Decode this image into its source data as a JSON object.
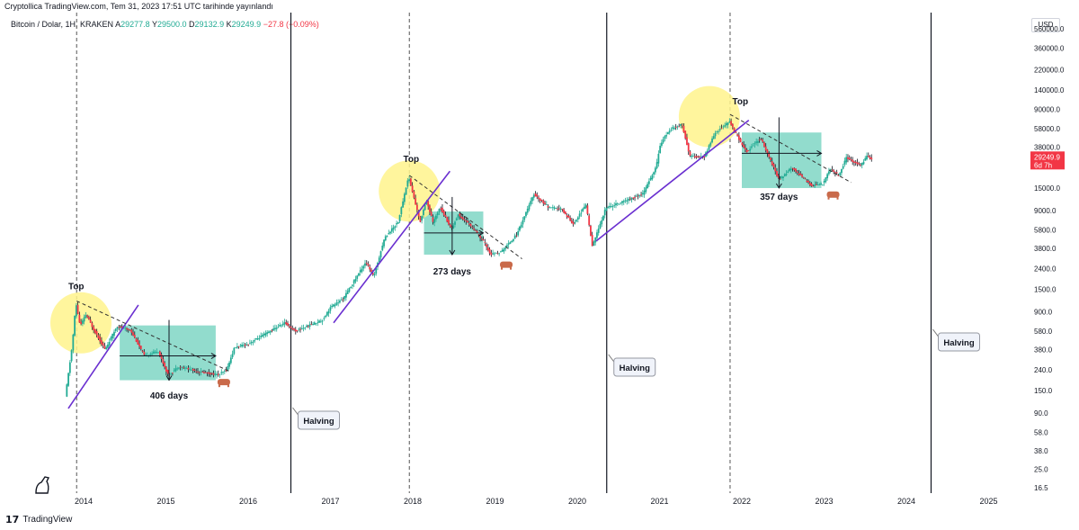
{
  "header": {
    "published": "Cryptollica TradingView.com, Tem 31, 2023 17:51 UTC tarihinde yayınlandı"
  },
  "symbol": {
    "name": "Bitcoin / Dolar, 1H, KRAKEN",
    "open_label": "A",
    "open": "29277.8",
    "high_label": "Y",
    "high": "29500.0",
    "low_label": "D",
    "low": "29132.9",
    "close_label": "K",
    "close": "29249.9",
    "change": "−27.8 (−0.09%)"
  },
  "price_scale": {
    "currency": "USD",
    "ticks": [
      "560000.0",
      "360000.0",
      "220000.0",
      "140000.0",
      "90000.0",
      "58000.0",
      "38000.0",
      "15000.0",
      "9000.0",
      "5800.0",
      "3800.0",
      "2400.0",
      "1500.0",
      "900.0",
      "580.0",
      "380.0",
      "240.0",
      "150.0",
      "90.0",
      "58.0",
      "38.0",
      "25.0",
      "16.5"
    ],
    "last_price": "29249.9",
    "countdown": "6d 7h",
    "last_price_color": "#f23645"
  },
  "time_scale": {
    "years": [
      "2014",
      "2015",
      "2016",
      "2017",
      "2018",
      "2019",
      "2020",
      "2021",
      "2022",
      "2023",
      "2024",
      "2025"
    ]
  },
  "annotations": {
    "top_labels": [
      "Top",
      "Top",
      "Top"
    ],
    "durations": [
      "406 days",
      "273 days",
      "357 days"
    ],
    "halving_labels": [
      "Halving",
      "Halving",
      "Halving"
    ]
  },
  "colors": {
    "up": "#22ab94",
    "down": "#f23645",
    "candle_dark": "#131722",
    "bear_box": "#7fd6c4",
    "top_circle": "#fff38c",
    "trendline": "#6a2fd0",
    "bear_icon": "#c96a4a"
  },
  "footer": {
    "brand": "TradingView"
  },
  "chart_data": {
    "type": "candlestick",
    "title": "Bitcoin / Dolar, 1H, KRAKEN",
    "scale": "log",
    "ylim": [
      16.5,
      560000
    ],
    "x_range": [
      "2014",
      "2025"
    ],
    "last_price": 29249.9,
    "series": [
      {
        "name": "BTCUSD",
        "points": [
          [
            "2013-10-15",
            130
          ],
          [
            "2013-11-15",
            420
          ],
          [
            "2013-12-01",
            1100
          ],
          [
            "2013-12-20",
            650
          ],
          [
            "2014-01-15",
            850
          ],
          [
            "2014-02-15",
            620
          ],
          [
            "2014-04-10",
            380
          ],
          [
            "2014-06-01",
            650
          ],
          [
            "2014-08-01",
            590
          ],
          [
            "2014-10-01",
            330
          ],
          [
            "2014-12-01",
            370
          ],
          [
            "2015-01-15",
            210
          ],
          [
            "2015-03-01",
            260
          ],
          [
            "2015-06-01",
            230
          ],
          [
            "2015-08-25",
            215
          ],
          [
            "2015-10-01",
            240
          ],
          [
            "2015-11-05",
            400
          ],
          [
            "2016-01-01",
            430
          ],
          [
            "2016-06-15",
            700
          ],
          [
            "2016-08-01",
            580
          ],
          [
            "2016-12-01",
            750
          ],
          [
            "2017-01-05",
            1000
          ],
          [
            "2017-03-01",
            1200
          ],
          [
            "2017-06-10",
            2800
          ],
          [
            "2017-07-15",
            2000
          ],
          [
            "2017-09-01",
            4800
          ],
          [
            "2017-11-01",
            7000
          ],
          [
            "2017-12-17",
            19500
          ],
          [
            "2018-02-06",
            6900
          ],
          [
            "2018-03-05",
            11500
          ],
          [
            "2018-04-05",
            6800
          ],
          [
            "2018-05-05",
            9800
          ],
          [
            "2018-06-25",
            5900
          ],
          [
            "2018-07-25",
            8200
          ],
          [
            "2018-09-15",
            6500
          ],
          [
            "2018-11-20",
            4300
          ],
          [
            "2018-12-15",
            3300
          ],
          [
            "2019-02-01",
            3500
          ],
          [
            "2019-04-10",
            5200
          ],
          [
            "2019-06-26",
            13000
          ],
          [
            "2019-09-01",
            9600
          ],
          [
            "2019-10-26",
            9300
          ],
          [
            "2019-12-18",
            6600
          ],
          [
            "2020-02-12",
            10300
          ],
          [
            "2020-03-12",
            4000
          ],
          [
            "2020-05-10",
            9500
          ],
          [
            "2020-07-25",
            11000
          ],
          [
            "2020-10-21",
            13000
          ],
          [
            "2020-12-20",
            24000
          ],
          [
            "2021-01-08",
            41000
          ],
          [
            "2021-02-20",
            57000
          ],
          [
            "2021-04-14",
            64000
          ],
          [
            "2021-05-19",
            31000
          ],
          [
            "2021-07-20",
            30000
          ],
          [
            "2021-09-07",
            52000
          ],
          [
            "2021-11-10",
            68000
          ],
          [
            "2022-01-24",
            34000
          ],
          [
            "2022-03-29",
            47000
          ],
          [
            "2022-06-18",
            18000
          ],
          [
            "2022-08-15",
            24000
          ],
          [
            "2022-11-09",
            15800
          ],
          [
            "2022-12-31",
            16500
          ],
          [
            "2023-01-31",
            23000
          ],
          [
            "2023-03-10",
            20000
          ],
          [
            "2023-04-14",
            30000
          ],
          [
            "2023-06-15",
            25000
          ],
          [
            "2023-07-13",
            31000
          ],
          [
            "2023-07-31",
            29249.9
          ]
        ]
      }
    ],
    "annotations": [
      {
        "type": "top",
        "label": "Top",
        "date": "2013-12-01"
      },
      {
        "type": "top",
        "label": "Top",
        "date": "2017-12-17"
      },
      {
        "type": "top",
        "label": "Top",
        "date": "2021-11-10"
      },
      {
        "type": "duration",
        "label": "406 days"
      },
      {
        "type": "duration",
        "label": "273 days"
      },
      {
        "type": "duration",
        "label": "357 days"
      },
      {
        "type": "halving",
        "label": "Halving",
        "date": "2016-07-09"
      },
      {
        "type": "halving",
        "label": "Halving",
        "date": "2020-05-11"
      },
      {
        "type": "halving",
        "label": "Halving",
        "date": "2024-04-20"
      }
    ]
  }
}
